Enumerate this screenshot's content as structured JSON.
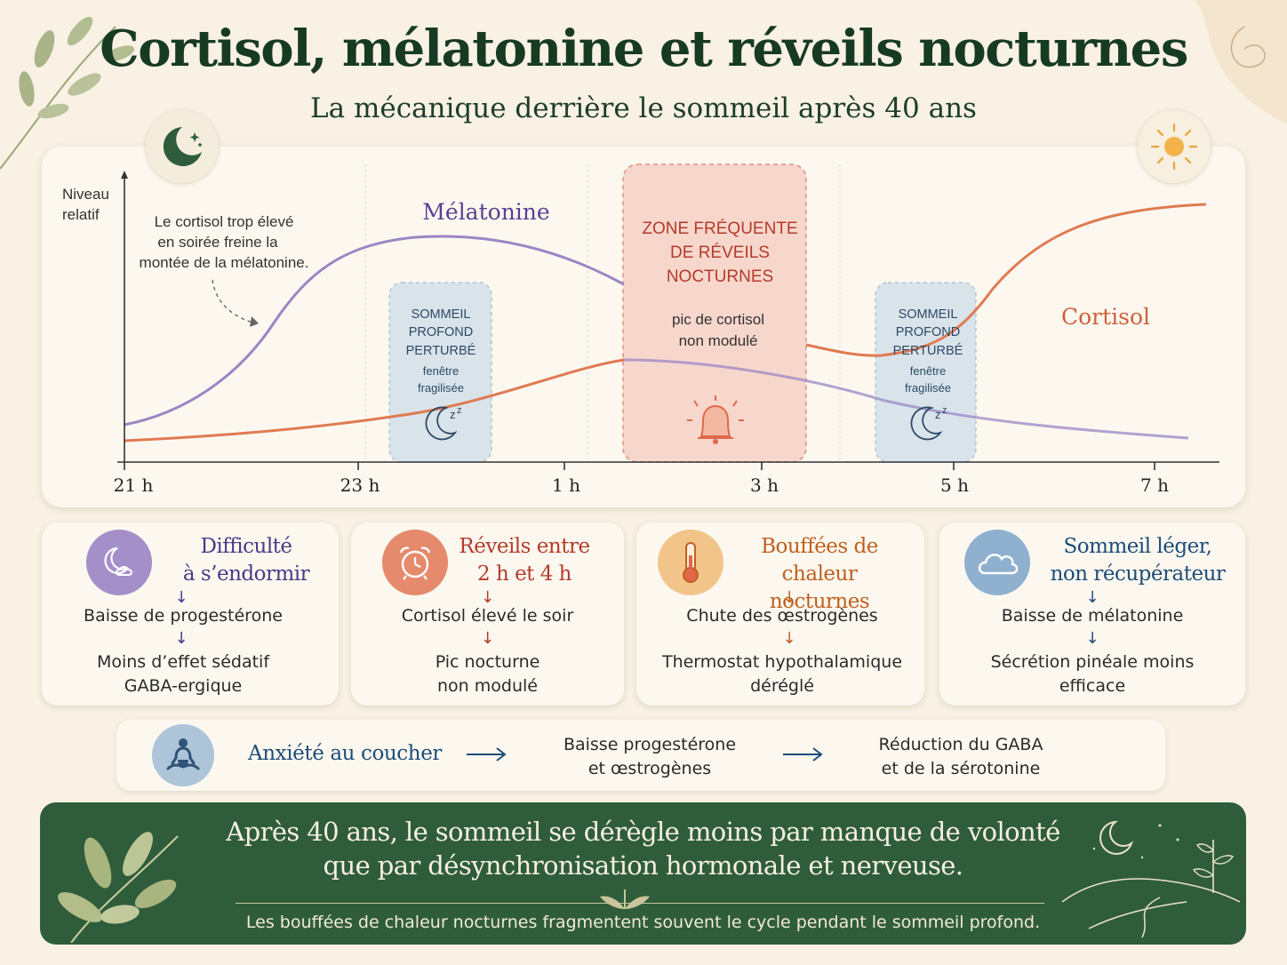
{
  "header": {
    "title": "Cortisol, mélatonine et réveils nocturnes",
    "subtitle": "La mécanique derrière le sommeil après 40 ans"
  },
  "chart": {
    "ylabel_line1": "Niveau",
    "ylabel_line2": "relatif",
    "x_ticks": [
      "21 h",
      "23 h",
      "1 h",
      "3 h",
      "5 h",
      "7 h"
    ],
    "annotation": [
      "Le cortisol trop élevé",
      "en soirée freine la",
      "montée de la mélatonine."
    ],
    "melatonin_label": "Mélatonine",
    "cortisol_label": "Cortisol",
    "deep_sleep_zone": {
      "title": [
        "SOMMEIL",
        "PROFOND",
        "PERTURBÉ"
      ],
      "sub": [
        "fenêtre",
        "fragilisée"
      ]
    },
    "wake_zone": {
      "title": [
        "ZONE FRÉQUENTE",
        "DE RÉVEILS",
        "NOCTURNES"
      ],
      "sub": [
        "pic de cortisol",
        "non modulé"
      ]
    },
    "colors": {
      "melatonin": "#9b86c4",
      "cortisol": "#e07a52",
      "wake_zone": "#f7d7cc",
      "deep_zone": "#d9e3ea"
    }
  },
  "cards": [
    {
      "title": [
        "Difficulté",
        "à s’endormir"
      ],
      "line1": "Baisse de progestérone",
      "line2": [
        "Moins d’effet sédatif",
        "GABA-ergique"
      ],
      "icon": "moon-cloud-icon",
      "color": "#4a3a8a",
      "icon_bg": "#a58fc9"
    },
    {
      "title": [
        "Réveils entre",
        "2 h et 4 h"
      ],
      "line1": "Cortisol élevé le soir",
      "line2": [
        "Pic nocturne",
        "non modulé"
      ],
      "icon": "alarm-clock-icon",
      "color": "#b53a2a",
      "icon_bg": "#e58a6c"
    },
    {
      "title": [
        "Bouffées de chaleur",
        "nocturnes"
      ],
      "line1": "Chute des œstrogènes",
      "line2": [
        "Thermostat hypothalamique",
        "déréglé"
      ],
      "icon": "thermometer-icon",
      "color": "#c0601e",
      "icon_bg": "#f3c48a"
    },
    {
      "title": [
        "Sommeil léger,",
        "non récupérateur"
      ],
      "line1": "Baisse de mélatonine",
      "line2": [
        "Sécrétion pinéale moins",
        "efficace"
      ],
      "icon": "cloud-icon",
      "color": "#1e4c7a",
      "icon_bg": "#8fb0cf"
    }
  ],
  "anxiety": {
    "label": "Anxiété au coucher",
    "step1": [
      "Baisse progestérone",
      "et œstrogènes"
    ],
    "step2": [
      "Réduction du GABA",
      "et de la sérotonine"
    ],
    "icon": "meditation-icon"
  },
  "footer": {
    "line1": "Après 40 ans, le sommeil se dérègle moins par manque de volonté",
    "line2": "que par désynchronisation hormonale et nerveuse.",
    "note": "Les bouffées de chaleur nocturnes fragmentent souvent le cycle pendant le sommeil profond."
  }
}
